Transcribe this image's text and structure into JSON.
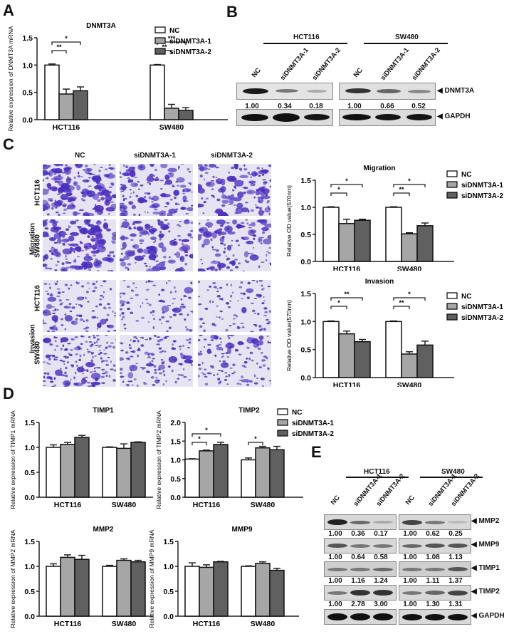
{
  "colors": {
    "nc": "#ffffff",
    "si1": "#a6a6a6",
    "si2": "#606060",
    "stain": "#4a2ec0",
    "stain_bg": "#e6e4f3"
  },
  "legend": {
    "items": [
      "NC",
      "siDNMT3A-1",
      "siDNMT3A-2"
    ]
  },
  "panels": {
    "A": {
      "letter": "A"
    },
    "B": {
      "letter": "B",
      "groups": [
        "HCT116",
        "SW480"
      ],
      "lanes": [
        "NC",
        "siDNMT3A-1",
        "siDNMT3A-2"
      ],
      "rows": [
        {
          "label": "◀ DNMT3A",
          "quant": {
            "HCT116": [
              "1.00",
              "0.34",
              "0.18"
            ],
            "SW480": [
              "1.00",
              "0.66",
              "0.52"
            ]
          }
        },
        {
          "label": "◀ GAPDH"
        }
      ]
    },
    "C": {
      "letter": "C",
      "col_headers": [
        "NC",
        "siDNMT3A-1",
        "siDNMT3A-2"
      ],
      "assays": [
        "Migration",
        "Invasion"
      ],
      "cell_lines": [
        "HCT116",
        "SW480"
      ]
    },
    "D": {
      "letter": "D"
    },
    "E": {
      "letter": "E",
      "groups": [
        "HCT116",
        "SW480"
      ],
      "lanes": [
        "NC",
        "siDNMT3A-1",
        "siDNMT3A-2"
      ],
      "rows": [
        {
          "label": "◀ MMP2",
          "quant": {
            "HCT116": [
              "1.00",
              "0.36",
              "0.17"
            ],
            "SW480": [
              "1.00",
              "0.62",
              "0.25"
            ]
          }
        },
        {
          "label": "◀ MMP9",
          "quant": {
            "HCT116": [
              "1.00",
              "0.64",
              "0.58"
            ],
            "SW480": [
              "1.00",
              "1.08",
              "1.13"
            ]
          }
        },
        {
          "label": "◀ TIMP1",
          "quant": {
            "HCT116": [
              "1.00",
              "1.16",
              "1.24"
            ],
            "SW480": [
              "1.00",
              "1.11",
              "1.37"
            ]
          }
        },
        {
          "label": "◀ TIMP2",
          "quant": {
            "HCT116": [
              "1.00",
              "2.78",
              "3.00"
            ],
            "SW480": [
              "1.00",
              "1.30",
              "1.31"
            ]
          }
        },
        {
          "label": "◀ GAPDH"
        }
      ]
    }
  },
  "chart_data": [
    {
      "id": "A",
      "type": "bar",
      "title": "DNMT3A",
      "ylabel": "Relative expression of DNMT3A  mRNA",
      "categories": [
        "HCT116",
        "SW480"
      ],
      "ylim": [
        0,
        1.5
      ],
      "yticks": [
        "0.0",
        "0.5",
        "1.0",
        "1.5"
      ],
      "series": [
        {
          "name": "NC",
          "values": [
            1.0,
            1.0
          ],
          "errors": [
            0.02,
            0.01
          ]
        },
        {
          "name": "siDNMT3A-1",
          "values": [
            0.47,
            0.21
          ],
          "errors": [
            0.09,
            0.07
          ]
        },
        {
          "name": "siDNMT3A-2",
          "values": [
            0.53,
            0.17
          ],
          "errors": [
            0.07,
            0.05
          ]
        }
      ],
      "significance": [
        {
          "group": 0,
          "from": 0,
          "to": 1,
          "label": "**"
        },
        {
          "group": 0,
          "from": 0,
          "to": 2,
          "label": "*"
        },
        {
          "group": 1,
          "from": 0,
          "to": 1,
          "label": "**"
        },
        {
          "group": 1,
          "from": 0,
          "to": 2,
          "label": "***"
        }
      ],
      "legend": true
    },
    {
      "id": "C-migration",
      "type": "bar",
      "title": "Migration",
      "ylabel": "Relative OD value(570nm)",
      "categories": [
        "HCT116",
        "SW480"
      ],
      "ylim": [
        0,
        1.5
      ],
      "yticks": [
        "0.0",
        "0.5",
        "1.0",
        "1.5"
      ],
      "series": [
        {
          "name": "NC",
          "values": [
            1.0,
            1.0
          ],
          "errors": [
            0.01,
            0.01
          ]
        },
        {
          "name": "siDNMT3A-1",
          "values": [
            0.7,
            0.51
          ],
          "errors": [
            0.08,
            0.02
          ]
        },
        {
          "name": "siDNMT3A-2",
          "values": [
            0.76,
            0.66
          ],
          "errors": [
            0.02,
            0.05
          ]
        }
      ],
      "significance": [
        {
          "group": 0,
          "from": 0,
          "to": 1,
          "label": "*"
        },
        {
          "group": 0,
          "from": 0,
          "to": 2,
          "label": "*"
        },
        {
          "group": 1,
          "from": 0,
          "to": 1,
          "label": "**"
        },
        {
          "group": 1,
          "from": 0,
          "to": 2,
          "label": "*"
        }
      ],
      "legend": true
    },
    {
      "id": "C-invasion",
      "type": "bar",
      "title": "Invasion",
      "ylabel": "Relative OD value(570nm)",
      "categories": [
        "HCT116",
        "SW480"
      ],
      "ylim": [
        0,
        1.5
      ],
      "yticks": [
        "0.0",
        "0.5",
        "1.0",
        "1.5"
      ],
      "series": [
        {
          "name": "NC",
          "values": [
            1.0,
            1.0
          ],
          "errors": [
            0.01,
            0.01
          ]
        },
        {
          "name": "siDNMT3A-1",
          "values": [
            0.78,
            0.42
          ],
          "errors": [
            0.05,
            0.04
          ]
        },
        {
          "name": "siDNMT3A-2",
          "values": [
            0.64,
            0.58
          ],
          "errors": [
            0.04,
            0.07
          ]
        }
      ],
      "significance": [
        {
          "group": 0,
          "from": 0,
          "to": 1,
          "label": "*"
        },
        {
          "group": 0,
          "from": 0,
          "to": 2,
          "label": "**"
        },
        {
          "group": 1,
          "from": 0,
          "to": 1,
          "label": "**"
        },
        {
          "group": 1,
          "from": 0,
          "to": 2,
          "label": "*"
        }
      ],
      "legend": true
    },
    {
      "id": "D-TIMP1",
      "type": "bar",
      "title": "TIMP1",
      "ylabel": "Relative expression of TIMP1 mRNA",
      "categories": [
        "HCT116",
        "SW480"
      ],
      "ylim": [
        0,
        1.5
      ],
      "yticks": [
        "0.0",
        "0.5",
        "1.0",
        "1.5"
      ],
      "series": [
        {
          "name": "NC",
          "values": [
            1.0,
            1.0
          ],
          "errors": [
            0.05,
            0.01
          ]
        },
        {
          "name": "siDNMT3A-1",
          "values": [
            1.06,
            0.98
          ],
          "errors": [
            0.04,
            0.09
          ]
        },
        {
          "name": "siDNMT3A-2",
          "values": [
            1.2,
            1.1
          ],
          "errors": [
            0.04,
            0.01
          ]
        }
      ],
      "significance": [],
      "legend": false
    },
    {
      "id": "D-TIMP2",
      "type": "bar",
      "title": "TIMP2",
      "ylabel": "Relative expression of TIMP2 mRNA",
      "categories": [
        "HCT116",
        "SW480"
      ],
      "ylim": [
        0,
        2.0
      ],
      "yticks": [
        "0.0",
        "0.5",
        "1.0",
        "1.5",
        "2.0"
      ],
      "series": [
        {
          "name": "NC",
          "values": [
            1.02,
            1.0
          ],
          "errors": [
            0.01,
            0.05
          ]
        },
        {
          "name": "siDNMT3A-1",
          "values": [
            1.24,
            1.32
          ],
          "errors": [
            0.02,
            0.04
          ]
        },
        {
          "name": "siDNMT3A-2",
          "values": [
            1.41,
            1.27
          ],
          "errors": [
            0.06,
            0.09
          ]
        }
      ],
      "significance": [
        {
          "group": 0,
          "from": 0,
          "to": 1,
          "label": "*"
        },
        {
          "group": 0,
          "from": 0,
          "to": 2,
          "label": "*"
        },
        {
          "group": 1,
          "from": 0,
          "to": 1,
          "label": "*"
        }
      ],
      "legend": true
    },
    {
      "id": "D-MMP2",
      "type": "bar",
      "title": "MMP2",
      "ylabel": "Relative expression of MMP2 mRNA",
      "categories": [
        "HCT116",
        "SW480"
      ],
      "ylim": [
        0,
        1.5
      ],
      "yticks": [
        "0.0",
        "0.5",
        "1.0",
        "1.5"
      ],
      "series": [
        {
          "name": "NC",
          "values": [
            1.0,
            1.0
          ],
          "errors": [
            0.05,
            0.02
          ]
        },
        {
          "name": "siDNMT3A-1",
          "values": [
            1.18,
            1.12
          ],
          "errors": [
            0.05,
            0.03
          ]
        },
        {
          "name": "siDNMT3A-2",
          "values": [
            1.14,
            1.09
          ],
          "errors": [
            0.08,
            0.03
          ]
        }
      ],
      "significance": [],
      "legend": false
    },
    {
      "id": "D-MMP9",
      "type": "bar",
      "title": "MMP9",
      "ylabel": "Relative expression of MMP9 mRNA",
      "categories": [
        "HCT116",
        "SW480"
      ],
      "ylim": [
        0,
        1.5
      ],
      "yticks": [
        "0.0",
        "0.5",
        "1.0",
        "1.5"
      ],
      "series": [
        {
          "name": "NC",
          "values": [
            1.0,
            1.0
          ],
          "errors": [
            0.07,
            0.01
          ]
        },
        {
          "name": "siDNMT3A-1",
          "values": [
            0.98,
            1.06
          ],
          "errors": [
            0.05,
            0.03
          ]
        },
        {
          "name": "siDNMT3A-2",
          "values": [
            1.09,
            0.92
          ],
          "errors": [
            0.01,
            0.04
          ]
        }
      ],
      "significance": [],
      "legend": false
    }
  ]
}
